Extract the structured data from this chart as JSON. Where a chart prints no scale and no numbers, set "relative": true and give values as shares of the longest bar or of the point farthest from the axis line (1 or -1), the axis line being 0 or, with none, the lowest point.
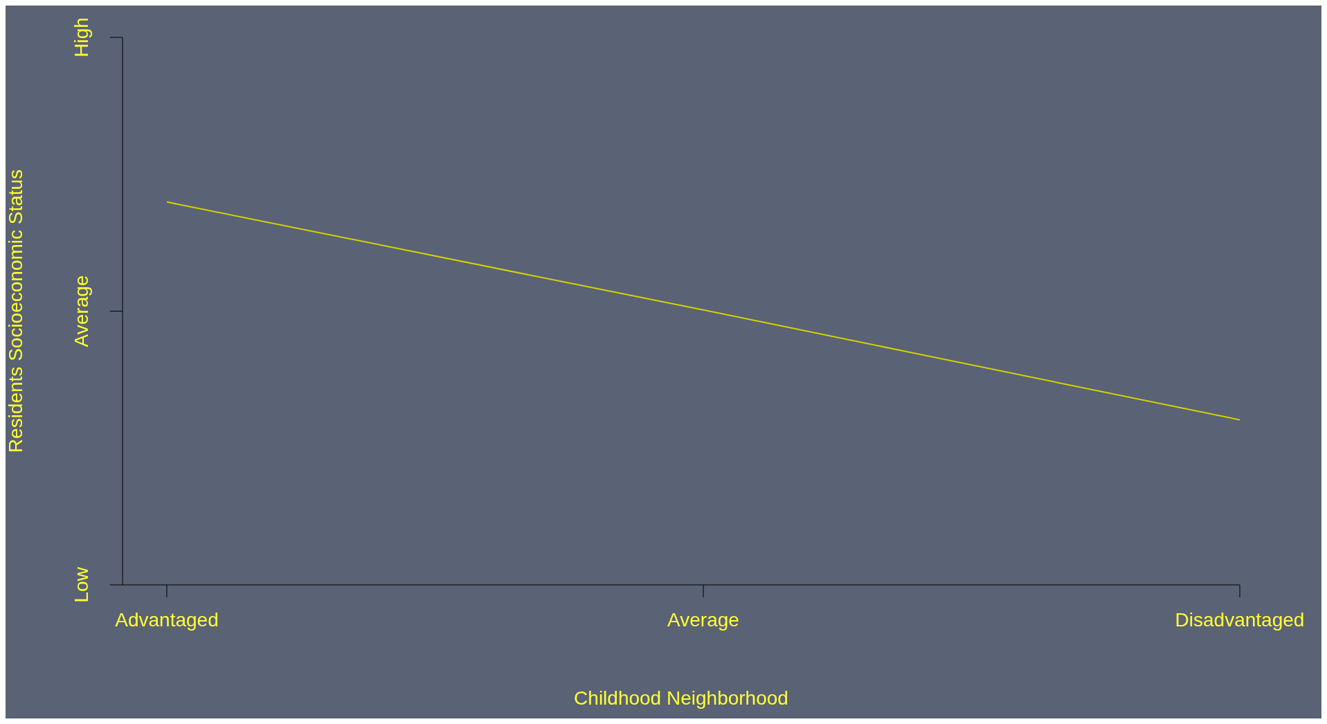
{
  "chart_data": {
    "type": "line",
    "xlabel": "Childhood Neighborhood",
    "ylabel": "Residents Socioeconomic Status",
    "categories": [
      "Advantaged",
      "Average",
      "Disadvantaged"
    ],
    "series": [
      {
        "color": "#d4d400",
        "values": [
          1,
          0.718,
          0.431
        ]
      }
    ],
    "relative": true,
    "annotations": [
      "Low",
      "Average",
      "High"
    ],
    "marker": "none",
    "line_style": "solid"
  }
}
